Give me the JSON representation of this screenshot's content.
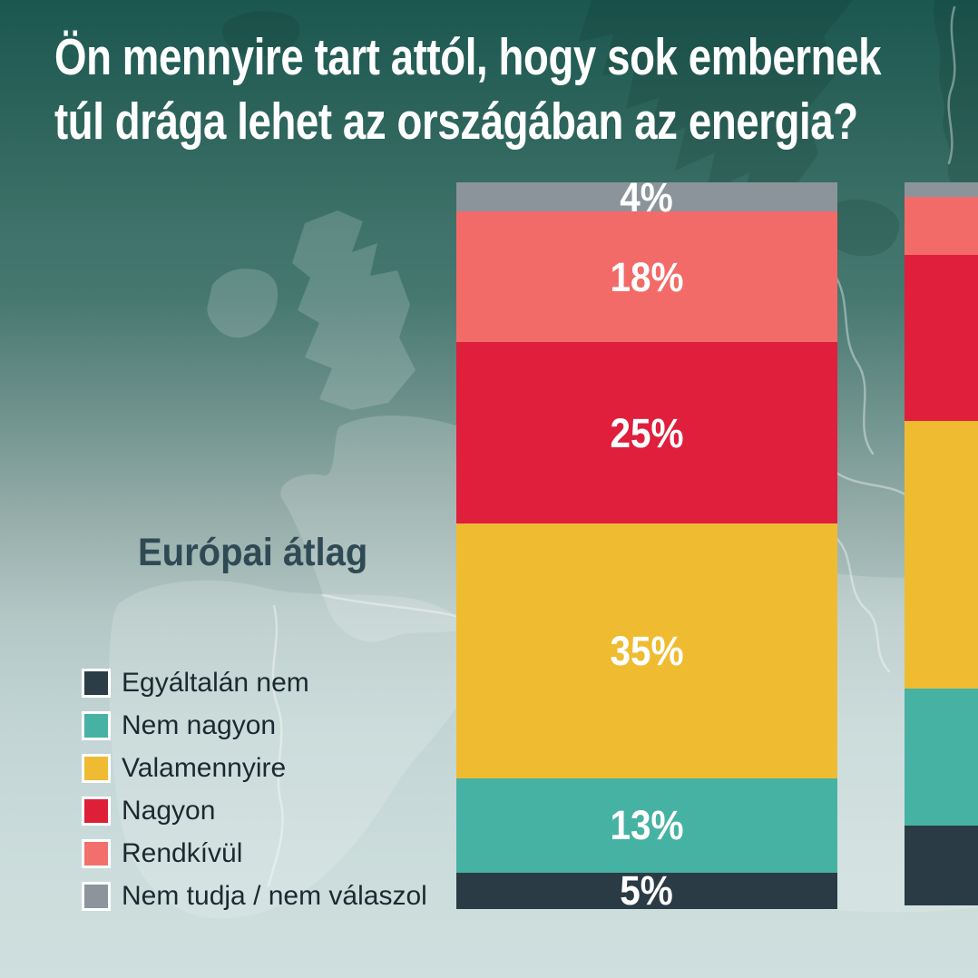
{
  "title": {
    "line1": "Ön mennyire tart attól, hogy sok embernek",
    "line2": "túl drága lehet az országában az energia?"
  },
  "group_label": "Európai átlag",
  "legend": {
    "items": [
      {
        "label": "Egyáltalán nem",
        "color": "#2C3D48"
      },
      {
        "label": "Nem nagyon",
        "color": "#46B2A4"
      },
      {
        "label": "Valamennyire",
        "color": "#EEBB33"
      },
      {
        "label": "Nagyon",
        "color": "#DD2038"
      },
      {
        "label": "Rendkívül",
        "color": "#F2706B"
      },
      {
        "label": "Nem tudja / nem válaszol",
        "color": "#8D959C"
      }
    ]
  },
  "chart_data": {
    "type": "bar",
    "stacked": true,
    "orientation": "vertical",
    "title": "Ön mennyire tart attól, hogy sok embernek túl drága lehet az országában az energia?",
    "unit": "%",
    "category": "Európai átlag",
    "series_top_to_bottom": [
      "Nem tudja / nem válaszol",
      "Rendkívül",
      "Nagyon",
      "Valamennyire",
      "Nem nagyon",
      "Egyáltalán nem"
    ],
    "bars": {
      "europai_atlag": {
        "label": "Európai átlag",
        "segments": [
          {
            "name": "Nem tudja / nem válaszol",
            "value": 4,
            "display": "4%",
            "color": "#8B949B"
          },
          {
            "name": "Rendkívül",
            "value": 18,
            "display": "18%",
            "color": "#F26B68"
          },
          {
            "name": "Nagyon",
            "value": 25,
            "display": "25%",
            "color": "#DF1F3C"
          },
          {
            "name": "Valamennyire",
            "value": 35,
            "display": "35%",
            "color": "#EFBC31"
          },
          {
            "name": "Nem nagyon",
            "value": 13,
            "display": "13%",
            "color": "#46B2A4"
          },
          {
            "name": "Egyáltalán nem",
            "value": 5,
            "display": "5%",
            "color": "#2B3B46"
          }
        ]
      },
      "partial_right": {
        "label": "",
        "cut_off_at_right_edge": true,
        "values_estimated_from_pixels": true,
        "segments": [
          {
            "name": "Nem tudja / nem válaszol",
            "value": 2,
            "display": "",
            "color": "#8B949B"
          },
          {
            "name": "Rendkívül",
            "value": 8,
            "display": "",
            "color": "#F26B68"
          },
          {
            "name": "Nagyon",
            "value": 23,
            "display": "",
            "color": "#DF1F3C"
          },
          {
            "name": "Valamennyire",
            "value": 37,
            "display": "",
            "color": "#EFBC31"
          },
          {
            "name": "Nem nagyon",
            "value": 19,
            "display": "",
            "color": "#46B2A4"
          },
          {
            "name": "Egyáltalán nem",
            "value": 11,
            "display": "",
            "color": "#2B3B46"
          }
        ]
      }
    },
    "colors": {
      "background_top": "#1B5750",
      "background_bottom": "#CFDFDE",
      "title_text": "#FFFFFF",
      "group_label_text": "#2F4A54",
      "legend_text": "#1C2930"
    }
  }
}
